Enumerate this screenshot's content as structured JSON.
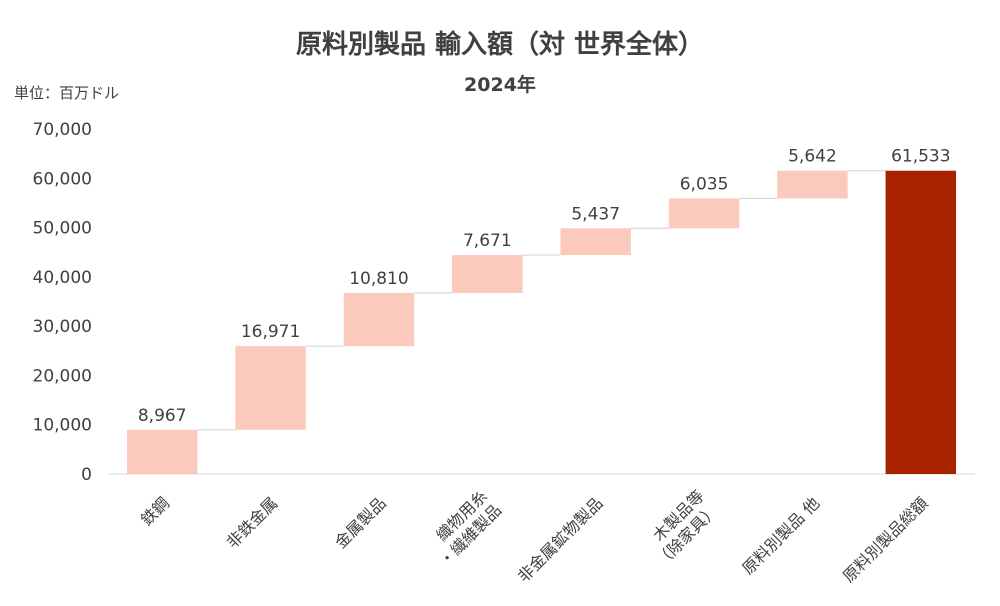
{
  "chart_data": {
    "type": "waterfall",
    "title": "原料別製品 輸入額（対 世界全体）",
    "subtitle": "2024年",
    "unit_label": "単位：百万ドル",
    "categories": [
      [
        "鉄鋼"
      ],
      [
        "非鉄金属"
      ],
      [
        "金属製品"
      ],
      [
        "織物用糸",
        "・繊維製品"
      ],
      [
        "非金属鉱物製品"
      ],
      [
        "木製品等",
        "（除家具）"
      ],
      [
        "原料別製品 他"
      ],
      [
        "原料別製品総額"
      ]
    ],
    "values": [
      8967,
      16971,
      10810,
      7671,
      5437,
      6035,
      5642,
      61533
    ],
    "value_labels": [
      "8,967",
      "16,971",
      "10,810",
      "7,671",
      "5,437",
      "6,035",
      "5,642",
      "61,533"
    ],
    "total_index": 7,
    "ylim": [
      0,
      70000
    ],
    "yticks": [
      0,
      10000,
      20000,
      30000,
      40000,
      50000,
      60000,
      70000
    ],
    "ytick_labels": [
      "0",
      "10,000",
      "20,000",
      "30,000",
      "40,000",
      "50,000",
      "60,000",
      "70,000"
    ],
    "colors": {
      "step": "#fcc9bd",
      "total": "#a82200",
      "connector": "#d9d9d9",
      "text": "#404040"
    },
    "grid": false,
    "legend": "none"
  }
}
